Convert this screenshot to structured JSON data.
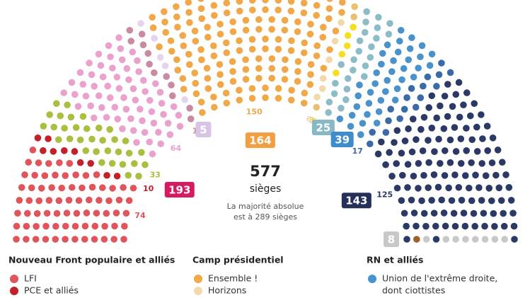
{
  "chart_data": {
    "type": "parliament",
    "total": 577,
    "total_label": "sièges",
    "note_lines": [
      "La majorité absolue",
      "est à 289 sièges"
    ],
    "groups": [
      {
        "value": 193,
        "color": "#d81b60",
        "segments": [
          {
            "value": 74,
            "color": "#e0545c"
          },
          {
            "value": 10,
            "color": "#c4202a"
          },
          {
            "value": 33,
            "color": "#a8c040"
          },
          {
            "value": 64,
            "color": "#eaa2cc"
          },
          {
            "value": 12,
            "color": "#c98aa4"
          }
        ]
      },
      {
        "value": 5,
        "color": "#d8c4e4",
        "segments": [
          {
            "value": 5,
            "color": "#e4d4ee"
          }
        ]
      },
      {
        "value": 164,
        "color": "#f0a040",
        "segments": [
          {
            "value": 150,
            "color": "#f0a848"
          },
          {
            "value": 6,
            "color": "#f3d9aa"
          },
          {
            "value": 3,
            "color": "#e8c070"
          },
          {
            "value": 5,
            "color": "#f4e020"
          }
        ]
      },
      {
        "value": 25,
        "color": "#88b8c4",
        "segments": [
          {
            "value": 25,
            "color": "#8cbcc8"
          }
        ]
      },
      {
        "value": 39,
        "color": "#3f8ccc",
        "segments": [
          {
            "value": 39,
            "color": "#4a92cc"
          }
        ]
      },
      {
        "value": 143,
        "color": "#24305a",
        "segments": [
          {
            "value": 17,
            "color": "#3a6aa8"
          },
          {
            "value": 125,
            "color": "#2a3a64"
          },
          {
            "value": 1,
            "color": "#a0602c"
          }
        ]
      },
      {
        "value": 8,
        "color": "#c8c8c8",
        "segments": [
          {
            "value": 8,
            "color": "#c8c8c8"
          }
        ]
      }
    ],
    "legend": [
      {
        "title": "Nouveau Front populaire et alliés",
        "items": [
          {
            "name": "LFI",
            "color": "#e0545c"
          },
          {
            "name": "PCE et alliés",
            "color": "#c4202a"
          }
        ]
      },
      {
        "title": "Camp présidentiel",
        "items": [
          {
            "name": "Ensemble !",
            "color": "#f0a848"
          },
          {
            "name": "Horizons",
            "color": "#f3d9aa"
          }
        ]
      },
      {
        "title": "RN et alliés",
        "items": [
          {
            "name": "Union de l'extrême droite,",
            "color": "#4a92cc"
          },
          {
            "name": "dont ciottistes",
            "color": null
          }
        ]
      }
    ]
  }
}
